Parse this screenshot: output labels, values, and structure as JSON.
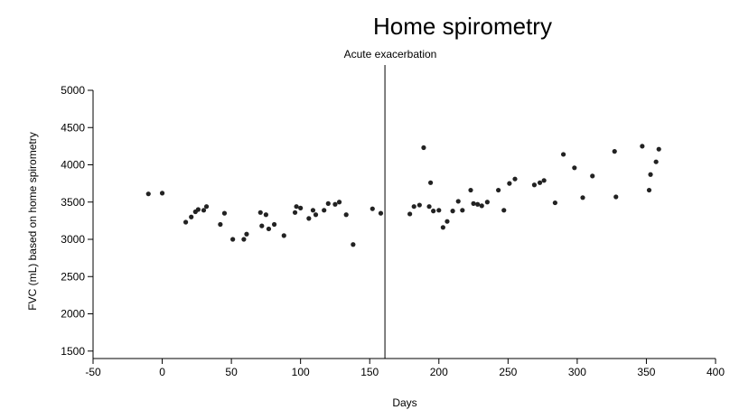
{
  "chart_data": {
    "type": "scatter",
    "title": "Home spirometry",
    "xlabel": "Days",
    "ylabel": "FVC (mL) based on home spirometry",
    "xlim": [
      -50,
      400
    ],
    "ylim": [
      1400,
      5000
    ],
    "xticks": [
      -50,
      0,
      50,
      100,
      150,
      200,
      250,
      300,
      350,
      400
    ],
    "yticks": [
      1500,
      2000,
      2500,
      3000,
      3500,
      4000,
      4500,
      5000
    ],
    "grid": false,
    "annotation": {
      "label": "Acute exacerbation",
      "x": 161
    },
    "point_color": "#222222",
    "points": [
      [
        -10,
        3610
      ],
      [
        0,
        3620
      ],
      [
        17,
        3230
      ],
      [
        21,
        3300
      ],
      [
        24,
        3370
      ],
      [
        26,
        3400
      ],
      [
        30,
        3390
      ],
      [
        32,
        3440
      ],
      [
        42,
        3200
      ],
      [
        45,
        3350
      ],
      [
        51,
        3000
      ],
      [
        59,
        3000
      ],
      [
        61,
        3070
      ],
      [
        71,
        3360
      ],
      [
        72,
        3180
      ],
      [
        75,
        3330
      ],
      [
        77,
        3140
      ],
      [
        81,
        3200
      ],
      [
        88,
        3050
      ],
      [
        96,
        3360
      ],
      [
        97,
        3440
      ],
      [
        100,
        3420
      ],
      [
        106,
        3280
      ],
      [
        109,
        3390
      ],
      [
        111,
        3330
      ],
      [
        117,
        3390
      ],
      [
        120,
        3480
      ],
      [
        125,
        3470
      ],
      [
        128,
        3500
      ],
      [
        133,
        3330
      ],
      [
        138,
        2930
      ],
      [
        152,
        3410
      ],
      [
        158,
        3350
      ],
      [
        179,
        3340
      ],
      [
        182,
        3440
      ],
      [
        186,
        3460
      ],
      [
        189,
        4230
      ],
      [
        193,
        3440
      ],
      [
        194,
        3760
      ],
      [
        196,
        3380
      ],
      [
        200,
        3390
      ],
      [
        203,
        3160
      ],
      [
        206,
        3240
      ],
      [
        210,
        3380
      ],
      [
        214,
        3510
      ],
      [
        217,
        3390
      ],
      [
        223,
        3660
      ],
      [
        225,
        3480
      ],
      [
        228,
        3470
      ],
      [
        231,
        3450
      ],
      [
        235,
        3500
      ],
      [
        243,
        3660
      ],
      [
        247,
        3390
      ],
      [
        251,
        3750
      ],
      [
        255,
        3810
      ],
      [
        269,
        3730
      ],
      [
        273,
        3760
      ],
      [
        276,
        3790
      ],
      [
        284,
        3490
      ],
      [
        290,
        4140
      ],
      [
        298,
        3960
      ],
      [
        304,
        3560
      ],
      [
        311,
        3850
      ],
      [
        327,
        4180
      ],
      [
        328,
        3570
      ],
      [
        347,
        4250
      ],
      [
        352,
        3660
      ],
      [
        353,
        3870
      ],
      [
        357,
        4040
      ],
      [
        359,
        4210
      ]
    ]
  }
}
